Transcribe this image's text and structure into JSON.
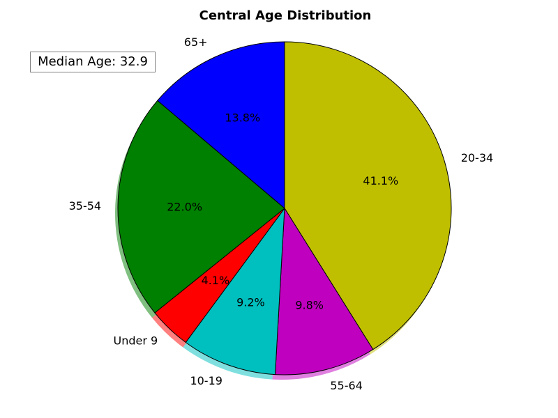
{
  "chart_data": {
    "type": "pie",
    "title": "Central Age Distribution",
    "categories": [
      "20-34",
      "55-64",
      "10-19",
      "Under 9",
      "35-54",
      "65+"
    ],
    "values": [
      41.1,
      9.8,
      9.2,
      4.1,
      22.0,
      13.8
    ],
    "value_labels": [
      "41.1%",
      "9.8%",
      "9.2%",
      "4.1%",
      "22.0%",
      "13.8%"
    ],
    "colors": [
      "#bfbf00",
      "#bf00bf",
      "#00bfbf",
      "#ff0000",
      "#008000",
      "#0000ff"
    ],
    "start_angle": "top",
    "direction": "clockwise",
    "shadow": true,
    "annotation": "Median Age: 32.9"
  }
}
